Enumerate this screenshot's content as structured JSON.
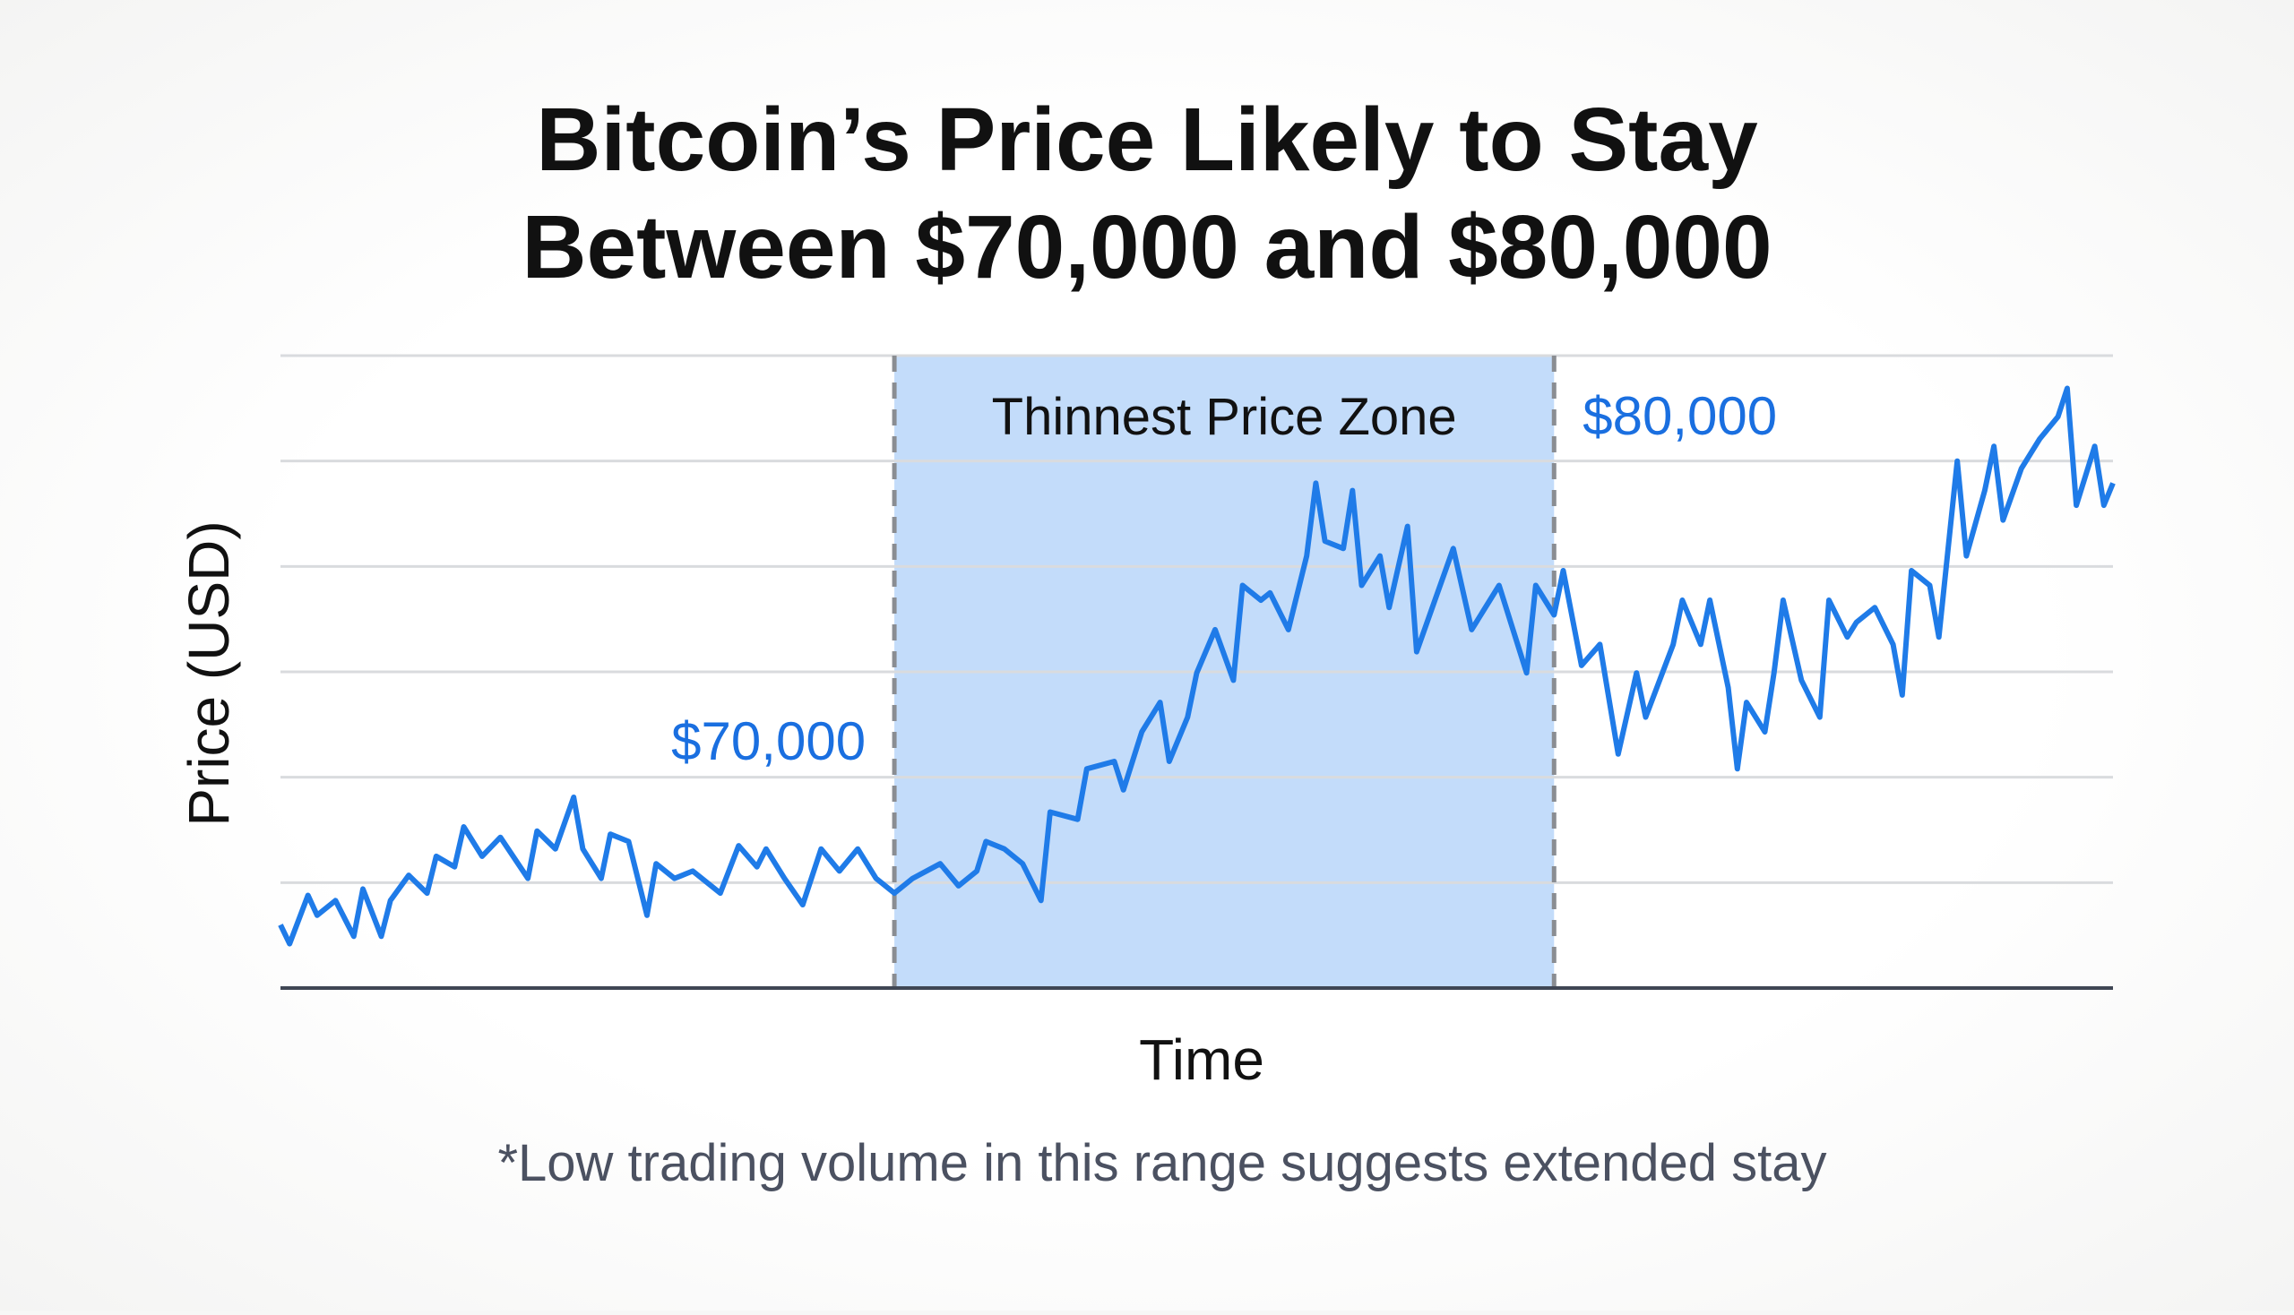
{
  "chart_data": {
    "type": "line",
    "title_lines": [
      "Bitcoin’s Price Likely to Stay",
      "Between $70,000 and $80,000"
    ],
    "xlabel": "Time",
    "ylabel": "Price (USD)",
    "footnote": "*Low trading volume in this range suggests extended stay",
    "grid": true,
    "xlim": [
      0,
      200
    ],
    "ylim": [
      0,
      6
    ],
    "colors": {
      "line": "#1f7be8",
      "zone_fill": "#c3dcfa",
      "annotation": "#1a6fe0",
      "divider": "#8a8d92",
      "grid": "#d9dbde",
      "axis": "#3f4654"
    },
    "zone": {
      "label": "Thinnest Price Zone",
      "x_start": 67,
      "x_end": 139,
      "start_label": "$70,000",
      "end_label": "$80,000"
    },
    "series": [
      {
        "points": [
          [
            0,
            0.6
          ],
          [
            1,
            0.42
          ],
          [
            3,
            0.88
          ],
          [
            4,
            0.69
          ],
          [
            6,
            0.83
          ],
          [
            8,
            0.49
          ],
          [
            9,
            0.94
          ],
          [
            11,
            0.49
          ],
          [
            12,
            0.83
          ],
          [
            14,
            1.07
          ],
          [
            16,
            0.9
          ],
          [
            17,
            1.25
          ],
          [
            19,
            1.15
          ],
          [
            20,
            1.53
          ],
          [
            22,
            1.25
          ],
          [
            24,
            1.43
          ],
          [
            27,
            1.04
          ],
          [
            28,
            1.49
          ],
          [
            30,
            1.32
          ],
          [
            32,
            1.81
          ],
          [
            33,
            1.32
          ],
          [
            35,
            1.04
          ],
          [
            36,
            1.46
          ],
          [
            38,
            1.39
          ],
          [
            40,
            0.69
          ],
          [
            41,
            1.18
          ],
          [
            43,
            1.04
          ],
          [
            45,
            1.11
          ],
          [
            48,
            0.9
          ],
          [
            50,
            1.35
          ],
          [
            52,
            1.15
          ],
          [
            53,
            1.32
          ],
          [
            55,
            1.04
          ],
          [
            57,
            0.79
          ],
          [
            59,
            1.32
          ],
          [
            61,
            1.11
          ],
          [
            63,
            1.32
          ],
          [
            65,
            1.04
          ],
          [
            67,
            0.9
          ],
          [
            69,
            1.04
          ],
          [
            72,
            1.18
          ],
          [
            74,
            0.97
          ],
          [
            76,
            1.11
          ],
          [
            77,
            1.39
          ],
          [
            79,
            1.32
          ],
          [
            81,
            1.18
          ],
          [
            83,
            0.83
          ],
          [
            84,
            1.67
          ],
          [
            87,
            1.6
          ],
          [
            88,
            2.08
          ],
          [
            91,
            2.15
          ],
          [
            92,
            1.88
          ],
          [
            94,
            2.43
          ],
          [
            96,
            2.71
          ],
          [
            97,
            2.15
          ],
          [
            99,
            2.57
          ],
          [
            100,
            2.99
          ],
          [
            102,
            3.4
          ],
          [
            104,
            2.92
          ],
          [
            105,
            3.82
          ],
          [
            107,
            3.68
          ],
          [
            108,
            3.75
          ],
          [
            110,
            3.4
          ],
          [
            112,
            4.1
          ],
          [
            113,
            4.79
          ],
          [
            114,
            4.24
          ],
          [
            116,
            4.17
          ],
          [
            117,
            4.72
          ],
          [
            118,
            3.82
          ],
          [
            120,
            4.1
          ],
          [
            121,
            3.61
          ],
          [
            123,
            4.38
          ],
          [
            124,
            3.19
          ],
          [
            126,
            3.68
          ],
          [
            128,
            4.17
          ],
          [
            130,
            3.4
          ],
          [
            132,
            3.68
          ],
          [
            133,
            3.82
          ],
          [
            136,
            2.99
          ],
          [
            137,
            3.82
          ],
          [
            139,
            3.54
          ],
          [
            140,
            3.96
          ],
          [
            142,
            3.06
          ],
          [
            144,
            3.26
          ],
          [
            146,
            2.22
          ],
          [
            148,
            2.99
          ],
          [
            149,
            2.57
          ],
          [
            152,
            3.26
          ],
          [
            153,
            3.68
          ],
          [
            155,
            3.26
          ],
          [
            156,
            3.68
          ],
          [
            158,
            2.85
          ],
          [
            159,
            2.08
          ],
          [
            160,
            2.71
          ],
          [
            162,
            2.43
          ],
          [
            163,
            2.99
          ],
          [
            164,
            3.68
          ],
          [
            166,
            2.92
          ],
          [
            168,
            2.57
          ],
          [
            169,
            3.68
          ],
          [
            171,
            3.33
          ],
          [
            172,
            3.47
          ],
          [
            174,
            3.61
          ],
          [
            176,
            3.26
          ],
          [
            177,
            2.78
          ],
          [
            178,
            3.96
          ],
          [
            180,
            3.82
          ],
          [
            181,
            3.33
          ],
          [
            183,
            5.0
          ],
          [
            184,
            4.1
          ],
          [
            186,
            4.72
          ],
          [
            187,
            5.14
          ],
          [
            188,
            4.44
          ],
          [
            190,
            4.93
          ],
          [
            192,
            5.21
          ],
          [
            194,
            5.42
          ],
          [
            195,
            5.69
          ],
          [
            196,
            4.58
          ],
          [
            198,
            5.14
          ],
          [
            199,
            4.58
          ],
          [
            200,
            4.79
          ]
        ]
      }
    ]
  }
}
